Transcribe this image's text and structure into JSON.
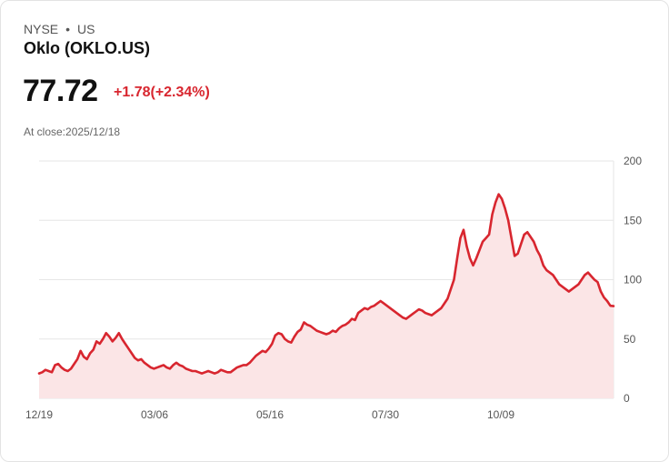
{
  "header": {
    "exchange": "NYSE",
    "separator": "•",
    "country": "US",
    "title": "Oklo (OKLO.US)",
    "price": "77.72",
    "change": "+1.78(+2.34%)",
    "close_info": "At close:2025/12/18"
  },
  "colors": {
    "line": "#d8262f",
    "fill": "#fbe5e6",
    "change": "#d8262f",
    "grid": "#e6e6e6"
  },
  "chart_data": {
    "type": "area",
    "title": "",
    "xlabel": "",
    "ylabel": "",
    "ylim": [
      0,
      200
    ],
    "y_ticks": [
      "0",
      "50",
      "100",
      "150",
      "200"
    ],
    "x_ticks": [
      "12/19",
      "03/06",
      "05/16",
      "07/30",
      "10/09"
    ],
    "grid": true,
    "y_axis_position": "right",
    "series": [
      {
        "values": [
          21,
          22,
          24,
          23,
          22,
          28,
          29,
          26,
          24,
          23,
          25,
          29,
          33,
          40,
          35,
          33,
          38,
          41,
          48,
          46,
          50,
          55,
          52,
          48,
          51,
          55,
          50,
          46,
          42,
          38,
          34,
          32,
          33,
          30,
          28,
          26,
          25,
          26,
          27,
          28,
          26,
          25,
          28,
          30,
          28,
          27,
          25,
          24,
          23,
          23,
          22,
          21,
          22,
          23,
          22,
          21,
          22,
          24,
          23,
          22,
          22,
          24,
          26,
          27,
          28,
          28,
          30,
          33,
          36,
          38,
          40,
          39,
          42,
          46,
          53,
          55,
          54,
          50,
          48,
          47,
          52,
          56,
          58,
          64,
          62,
          61,
          59,
          57,
          56,
          55,
          54,
          55,
          57,
          56,
          59,
          61,
          62,
          64,
          67,
          66,
          72,
          74,
          76,
          75,
          77,
          78,
          80,
          82,
          80,
          78,
          76,
          74,
          72,
          70,
          68,
          67,
          69,
          71,
          73,
          75,
          74,
          72,
          71,
          70,
          72,
          74,
          76,
          80,
          84,
          92,
          100,
          118,
          135,
          142,
          128,
          118,
          112,
          118,
          125,
          132,
          135,
          138,
          155,
          165,
          172,
          168,
          160,
          150,
          135,
          120,
          122,
          130,
          138,
          140,
          136,
          132,
          125,
          120,
          112,
          108,
          106,
          104,
          100,
          96,
          94,
          92,
          90,
          92,
          94,
          96,
          100,
          104,
          106,
          103,
          100,
          98,
          90,
          85,
          82,
          78,
          77.72
        ]
      }
    ]
  }
}
